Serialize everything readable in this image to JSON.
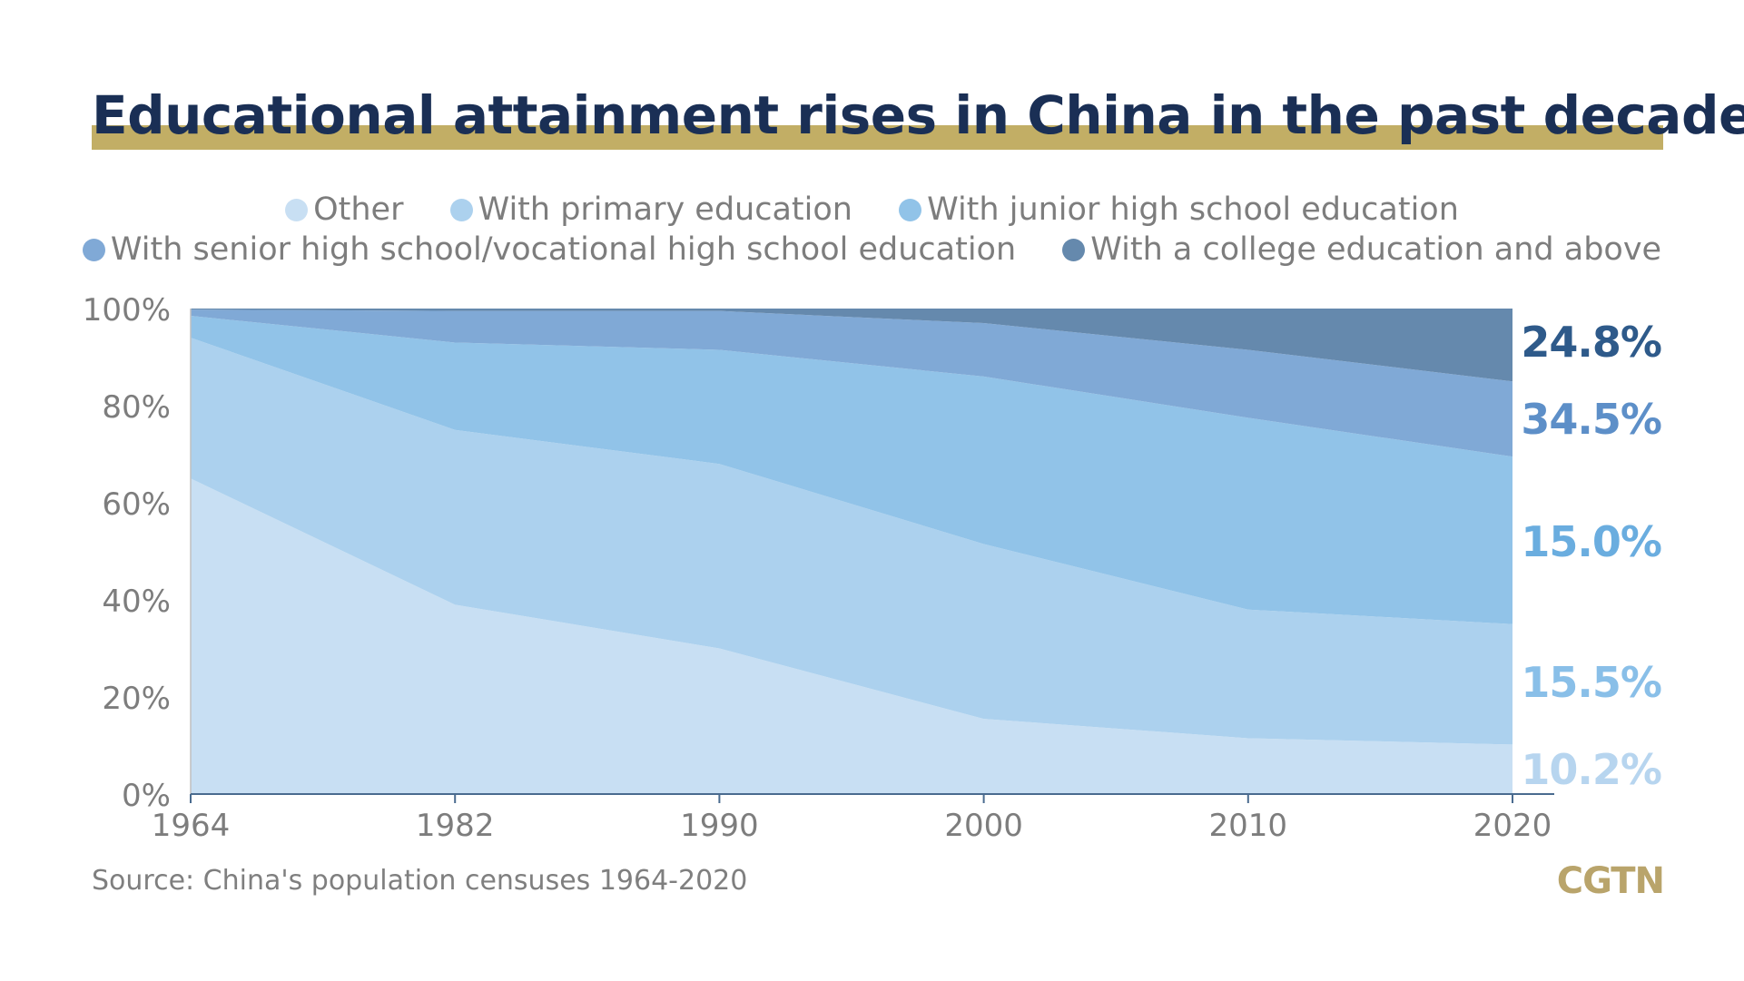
{
  "title": "Educational attainment rises in China in the past decades",
  "source": "Source: China's population censuses 1964-2020",
  "brand": "CGTN",
  "legend": [
    {
      "label": "Other",
      "color": "#c8dff3"
    },
    {
      "label": "With primary education",
      "color": "#acd1ee"
    },
    {
      "label": "With junior high school education",
      "color": "#91c3e8"
    },
    {
      "label": "With senior high school/vocational high school education",
      "color": "#80a9d6"
    },
    {
      "label": "With a college education and above",
      "color": "#6589ad"
    }
  ],
  "chart_data": {
    "type": "area",
    "stacked": true,
    "title": "Educational attainment rises in China in the past decades",
    "x": [
      1964,
      1982,
      1990,
      2000,
      2010,
      2020
    ],
    "y_ticks": [
      "0%",
      "20%",
      "40%",
      "60%",
      "80%",
      "100%"
    ],
    "ylim": [
      0,
      100
    ],
    "unit": "%",
    "grid": false,
    "legend_position": "top",
    "series": [
      {
        "name": "Other",
        "color": "#c8dff3",
        "values": [
          65,
          39,
          30,
          15.5,
          11.5,
          10.2
        ]
      },
      {
        "name": "With primary education",
        "color": "#acd1ee",
        "values": [
          29,
          36,
          38,
          36,
          26.5,
          24.8
        ]
      },
      {
        "name": "With junior high school education",
        "color": "#91c3e8",
        "values": [
          4.5,
          18,
          23.5,
          34.5,
          39.5,
          34.5
        ]
      },
      {
        "name": "With senior high school/vocational high school education",
        "color": "#80a9d6",
        "values": [
          1.3,
          6.5,
          8,
          11,
          14,
          15.5
        ]
      },
      {
        "name": "With a college education and above",
        "color": "#6589ad",
        "values": [
          0.2,
          0.5,
          0.5,
          3,
          8.5,
          15
        ]
      }
    ],
    "end_labels": [
      {
        "text": "24.8%",
        "color": "#2e5a8a"
      },
      {
        "text": "34.5%",
        "color": "#5d8fc8"
      },
      {
        "text": "15.0%",
        "color": "#6aaddf"
      },
      {
        "text": "15.5%",
        "color": "#89bfe8"
      },
      {
        "text": "10.2%",
        "color": "#b7d5ef"
      }
    ]
  }
}
